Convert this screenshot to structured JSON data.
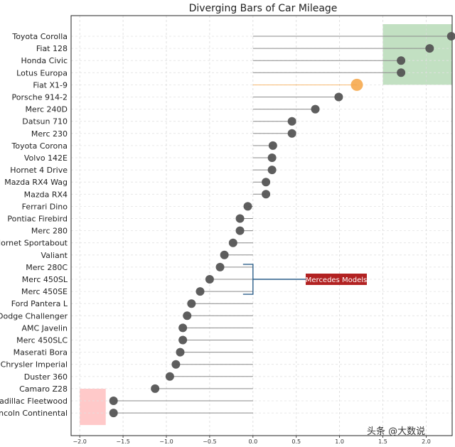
{
  "chart_data": {
    "type": "dot",
    "title": "Diverging Bars of Car Mileage",
    "xlabel": "",
    "ylabel": "",
    "xlim": [
      -2.1,
      2.3
    ],
    "xticks": [
      -2.0,
      -1.5,
      -1.0,
      -0.5,
      0.0,
      0.5,
      1.0,
      1.5,
      2.0
    ],
    "xtick_labels": [
      "−2.0",
      "−1.5",
      "−1.0",
      "−0.5",
      "0.0",
      "0.5",
      "1.0",
      "1.5",
      "2.0"
    ],
    "grid": true,
    "default_color": "#555555",
    "highlight_color": "#F6A444",
    "highlight_car": "Fiat X1-9",
    "cars": [
      "Toyota Corolla",
      "Fiat 128",
      "Honda Civic",
      "Lotus Europa",
      "Fiat X1-9",
      "Porsche 914-2",
      "Merc 240D",
      "Datsun 710",
      "Merc 230",
      "Toyota Corona",
      "Volvo 142E",
      "Hornet 4 Drive",
      "Mazda RX4 Wag",
      "Mazda RX4",
      "Ferrari Dino",
      "Pontiac Firebird",
      "Merc 280",
      "Hornet Sportabout",
      "Valiant",
      "Merc 280C",
      "Merc 450SL",
      "Merc 450SE",
      "Ford Pantera L",
      "Dodge Challenger",
      "AMC Javelin",
      "Merc 450SLC",
      "Maserati Bora",
      "Chrysler Imperial",
      "Duster 360",
      "Camaro Z28",
      "Cadillac Fleetwood",
      "Lincoln Continental"
    ],
    "values": [
      2.29,
      2.04,
      1.71,
      1.71,
      1.2,
      0.99,
      0.72,
      0.45,
      0.45,
      0.23,
      0.22,
      0.22,
      0.15,
      0.15,
      -0.06,
      -0.15,
      -0.15,
      -0.23,
      -0.33,
      -0.38,
      -0.5,
      -0.61,
      -0.71,
      -0.76,
      -0.81,
      -0.81,
      -0.84,
      -0.89,
      -0.96,
      -1.13,
      -1.61,
      -1.61
    ],
    "regions": [
      {
        "x": [
          1.5,
          2.3
        ],
        "rows": [
          0,
          3
        ],
        "color": "#b7dbb7"
      },
      {
        "x": [
          -2.0,
          -1.7
        ],
        "rows": [
          30,
          31
        ],
        "color": "#ffc0c0"
      }
    ],
    "annotation": {
      "text": "Mercedes Models",
      "rows": [
        19,
        21
      ],
      "box_color": "#b22222",
      "bracket_color": "#2c5f8a"
    }
  },
  "watermark": "头条 @大数说"
}
